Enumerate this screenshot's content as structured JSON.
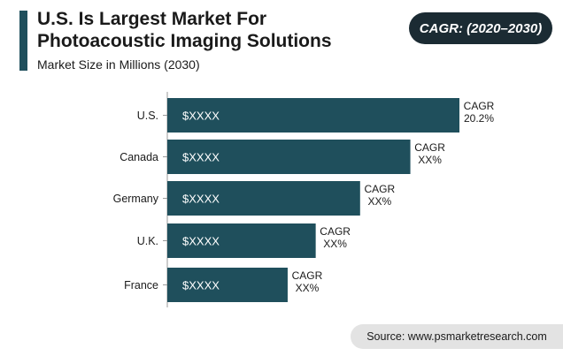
{
  "header": {
    "title_line1": "U.S. Is Largest Market For",
    "title_line2": "Photoacoustic Imaging Solutions",
    "subtitle": "Market Size in Millions (2030)",
    "badge": "CAGR: (2020–2030)"
  },
  "footer": {
    "source": "Source: www.psmarketresearch.com"
  },
  "colors": {
    "bar": "#1f4f5c",
    "accent": "#1f4f5c",
    "badge_bg": "#1b2b33"
  },
  "chart_data": {
    "type": "bar",
    "orientation": "horizontal",
    "categories": [
      "U.S.",
      "Canada",
      "Germany",
      "U.K.",
      "France"
    ],
    "value_labels": [
      "$XXXX",
      "$XXXX",
      "$XXXX",
      "$XXXX",
      "$XXXX"
    ],
    "relative_values": [
      1.0,
      0.832,
      0.66,
      0.508,
      0.412
    ],
    "cagr_label": "CAGR",
    "cagr_values": [
      "20.2%",
      "XX%",
      "XX%",
      "XX%",
      "XX%"
    ],
    "grid": false,
    "legend": "none"
  }
}
